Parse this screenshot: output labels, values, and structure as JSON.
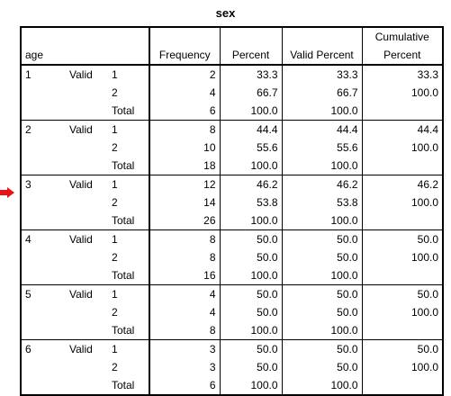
{
  "title": "sex",
  "columns": {
    "row_header": "age",
    "frequency": "Frequency",
    "percent": "Percent",
    "valid_percent": "Valid Percent",
    "cumulative_percent": "Cumulative Percent"
  },
  "groups": [
    {
      "age": "1",
      "valid": "Valid",
      "rows": [
        {
          "label": "1",
          "freq": "2",
          "pct": "33.3",
          "vpct": "33.3",
          "cpct": "33.3"
        },
        {
          "label": "2",
          "freq": "4",
          "pct": "66.7",
          "vpct": "66.7",
          "cpct": "100.0"
        },
        {
          "label": "Total",
          "freq": "6",
          "pct": "100.0",
          "vpct": "100.0",
          "cpct": ""
        }
      ]
    },
    {
      "age": "2",
      "valid": "Valid",
      "rows": [
        {
          "label": "1",
          "freq": "8",
          "pct": "44.4",
          "vpct": "44.4",
          "cpct": "44.4"
        },
        {
          "label": "2",
          "freq": "10",
          "pct": "55.6",
          "vpct": "55.6",
          "cpct": "100.0"
        },
        {
          "label": "Total",
          "freq": "18",
          "pct": "100.0",
          "vpct": "100.0",
          "cpct": ""
        }
      ]
    },
    {
      "age": "3",
      "valid": "Valid",
      "rows": [
        {
          "label": "1",
          "freq": "12",
          "pct": "46.2",
          "vpct": "46.2",
          "cpct": "46.2"
        },
        {
          "label": "2",
          "freq": "14",
          "pct": "53.8",
          "vpct": "53.8",
          "cpct": "100.0"
        },
        {
          "label": "Total",
          "freq": "26",
          "pct": "100.0",
          "vpct": "100.0",
          "cpct": ""
        }
      ]
    },
    {
      "age": "4",
      "valid": "Valid",
      "rows": [
        {
          "label": "1",
          "freq": "8",
          "pct": "50.0",
          "vpct": "50.0",
          "cpct": "50.0"
        },
        {
          "label": "2",
          "freq": "8",
          "pct": "50.0",
          "vpct": "50.0",
          "cpct": "100.0"
        },
        {
          "label": "Total",
          "freq": "16",
          "pct": "100.0",
          "vpct": "100.0",
          "cpct": ""
        }
      ]
    },
    {
      "age": "5",
      "valid": "Valid",
      "rows": [
        {
          "label": "1",
          "freq": "4",
          "pct": "50.0",
          "vpct": "50.0",
          "cpct": "50.0"
        },
        {
          "label": "2",
          "freq": "4",
          "pct": "50.0",
          "vpct": "50.0",
          "cpct": "100.0"
        },
        {
          "label": "Total",
          "freq": "8",
          "pct": "100.0",
          "vpct": "100.0",
          "cpct": ""
        }
      ]
    },
    {
      "age": "6",
      "valid": "Valid",
      "rows": [
        {
          "label": "1",
          "freq": "3",
          "pct": "50.0",
          "vpct": "50.0",
          "cpct": "50.0"
        },
        {
          "label": "2",
          "freq": "3",
          "pct": "50.0",
          "vpct": "50.0",
          "cpct": "100.0"
        },
        {
          "label": "Total",
          "freq": "6",
          "pct": "100.0",
          "vpct": "100.0",
          "cpct": ""
        }
      ]
    }
  ],
  "marker": {
    "icon": "red-arrow-right-icon",
    "color": "#e8141b",
    "points_to_group": "3"
  }
}
